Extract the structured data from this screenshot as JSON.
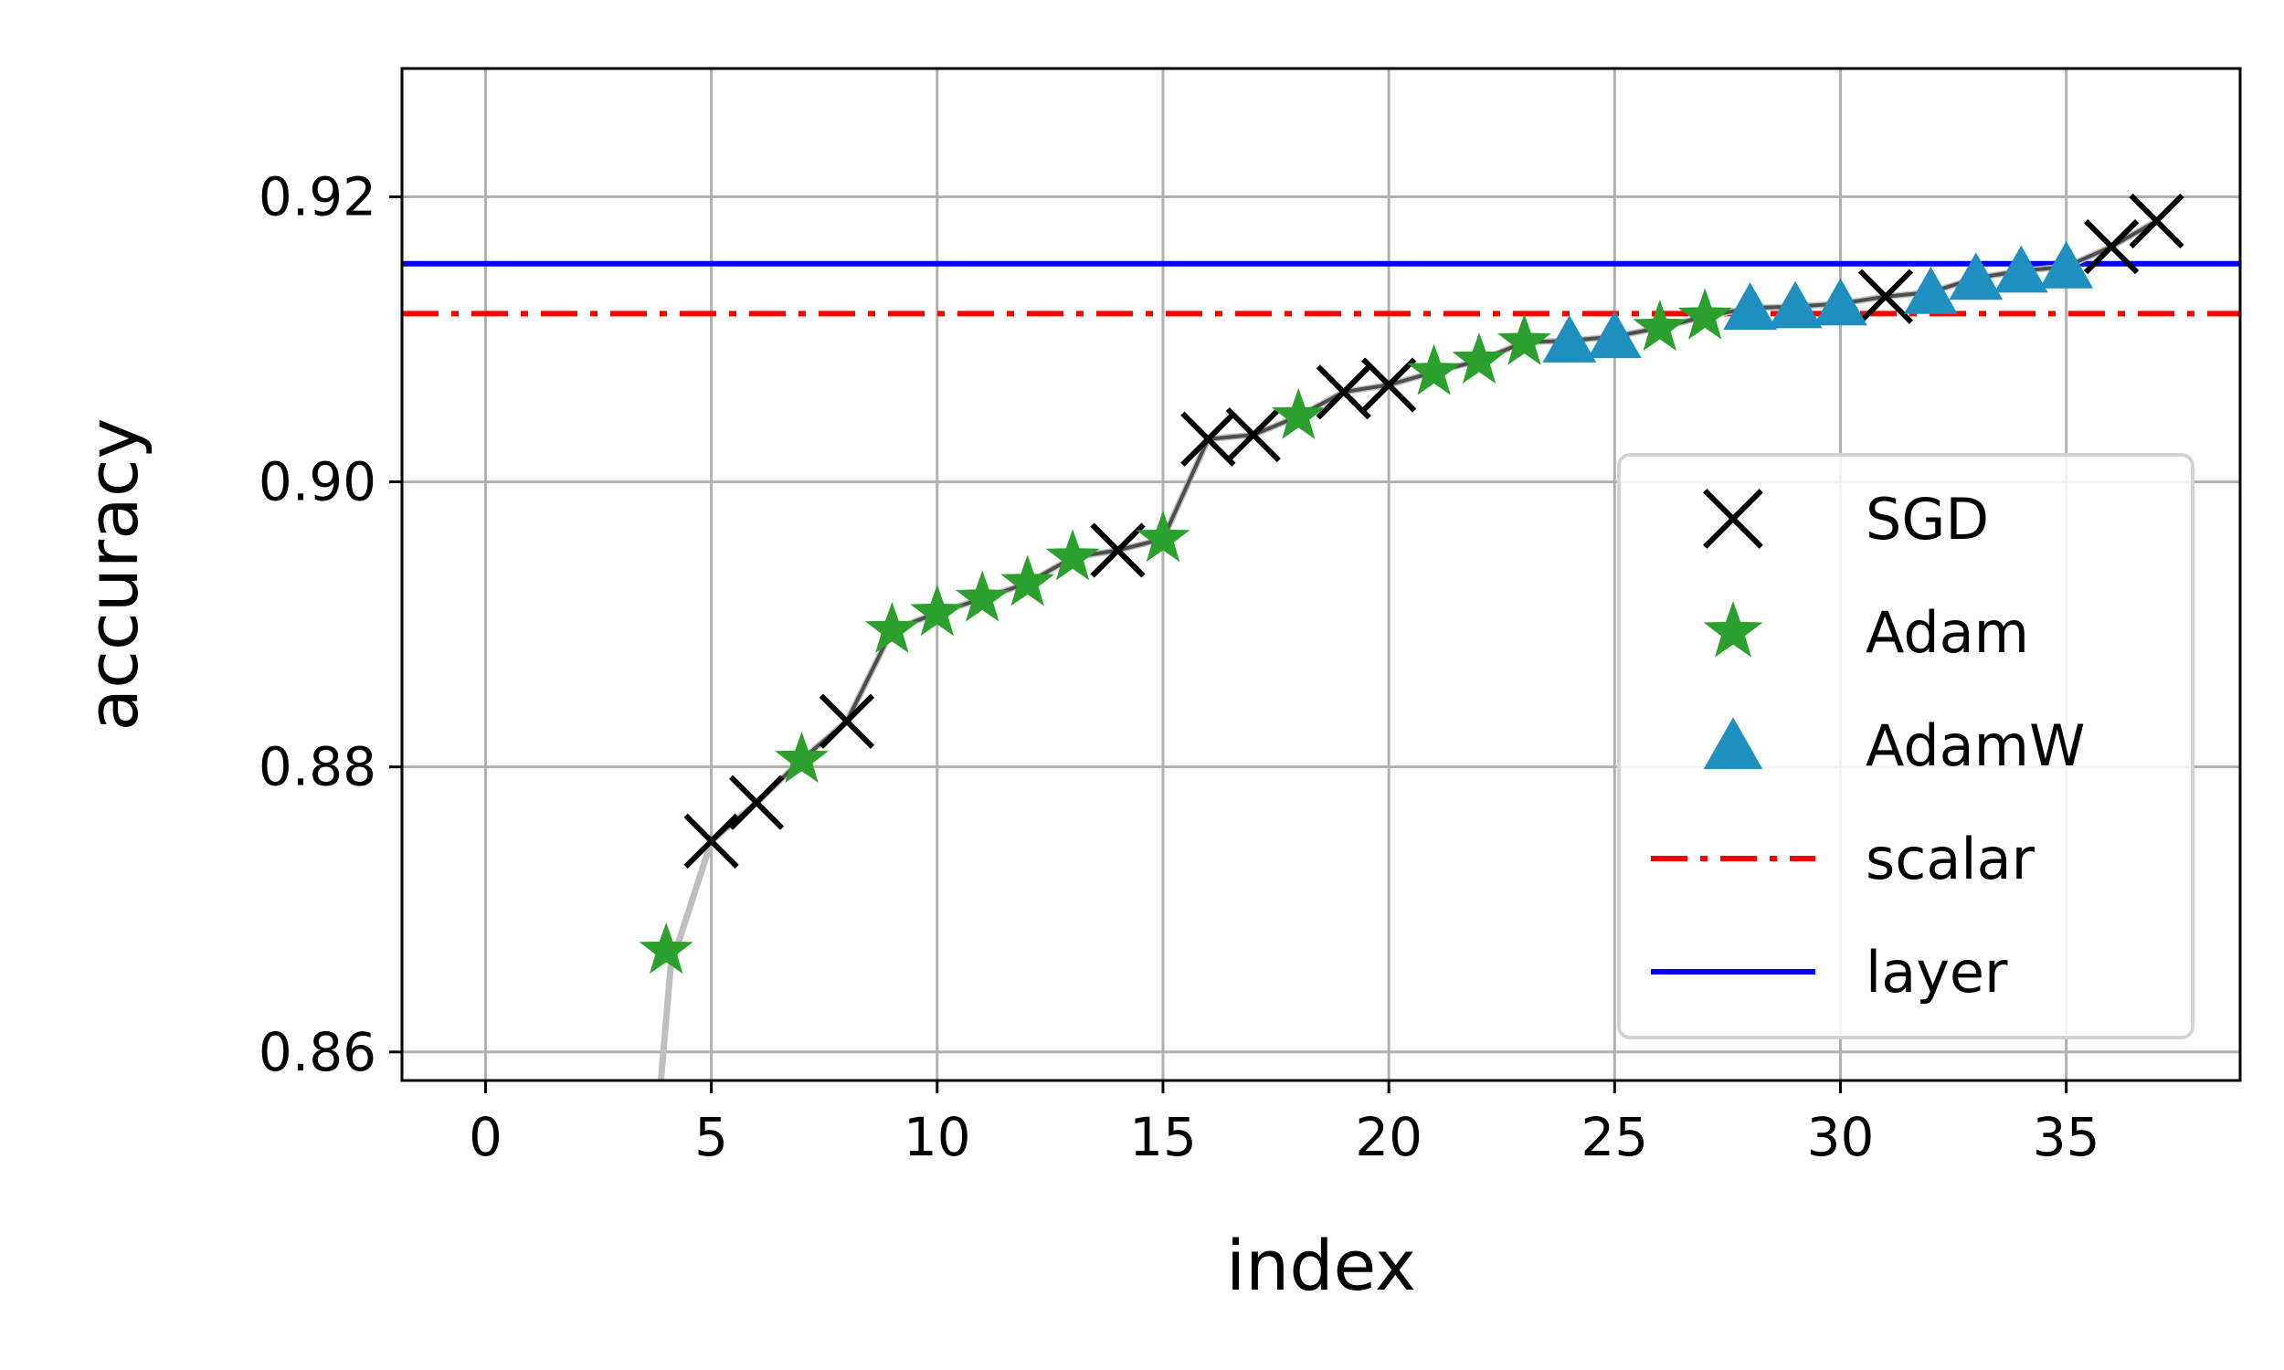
{
  "chart_data": {
    "type": "scatter",
    "title": "",
    "xlabel": "index",
    "ylabel": "accuracy",
    "xlim": [
      -1.85,
      38.85
    ],
    "ylim": [
      0.858,
      0.929
    ],
    "xticks": [
      0,
      5,
      10,
      15,
      20,
      25,
      30,
      35
    ],
    "yticks": [
      0.86,
      0.88,
      0.9,
      0.92
    ],
    "ytick_labels": [
      "0.86",
      "0.88",
      "0.90",
      "0.92"
    ],
    "grid": true,
    "legend_position": "lower-right",
    "curve": {
      "color": "#bfbfbf",
      "dark_color": "#3a3a3a",
      "points": [
        [
          3.75,
          0.853
        ],
        [
          4.1,
          0.866
        ],
        [
          5,
          0.8748
        ],
        [
          6,
          0.8775
        ],
        [
          7,
          0.8805
        ],
        [
          8,
          0.8832
        ],
        [
          9,
          0.8896
        ],
        [
          10,
          0.8908
        ],
        [
          11,
          0.8918
        ],
        [
          12,
          0.8929
        ],
        [
          13,
          0.8947
        ],
        [
          14,
          0.8952
        ],
        [
          15,
          0.896
        ],
        [
          16,
          0.903
        ],
        [
          17,
          0.9033
        ],
        [
          18,
          0.9046
        ],
        [
          19,
          0.9063
        ],
        [
          20,
          0.9068
        ],
        [
          21,
          0.9077
        ],
        [
          22,
          0.9085
        ],
        [
          23,
          0.9098
        ],
        [
          24,
          0.9099
        ],
        [
          25,
          0.9102
        ],
        [
          26,
          0.9108
        ],
        [
          27,
          0.9116
        ],
        [
          28,
          0.9122
        ],
        [
          29,
          0.9123
        ],
        [
          30,
          0.9125
        ],
        [
          31,
          0.913
        ],
        [
          32,
          0.9133
        ],
        [
          33,
          0.9143
        ],
        [
          34,
          0.9148
        ],
        [
          35,
          0.9151
        ],
        [
          36,
          0.9165
        ],
        [
          37,
          0.9183
        ]
      ]
    },
    "series": [
      {
        "name": "SGD",
        "marker": "x",
        "color": "#000000",
        "points": [
          [
            5,
            0.8748
          ],
          [
            6,
            0.8775
          ],
          [
            8,
            0.8832
          ],
          [
            14,
            0.8952
          ],
          [
            16,
            0.903
          ],
          [
            17,
            0.9033
          ],
          [
            19,
            0.9063
          ],
          [
            20,
            0.9068
          ],
          [
            31,
            0.913
          ],
          [
            36,
            0.9165
          ],
          [
            37,
            0.9183
          ]
        ]
      },
      {
        "name": "Adam",
        "marker": "star",
        "color": "#2ca02c",
        "points": [
          [
            4,
            0.8671
          ],
          [
            7,
            0.8805
          ],
          [
            9,
            0.8896
          ],
          [
            10,
            0.8908
          ],
          [
            11,
            0.8918
          ],
          [
            12,
            0.8929
          ],
          [
            13,
            0.8947
          ],
          [
            15,
            0.896
          ],
          [
            18,
            0.9046
          ],
          [
            21,
            0.9077
          ],
          [
            22,
            0.9085
          ],
          [
            23,
            0.9098
          ],
          [
            26,
            0.9108
          ],
          [
            27,
            0.9116
          ]
        ]
      },
      {
        "name": "AdamW",
        "marker": "triangle",
        "color": "#1f8fc0",
        "points": [
          [
            24,
            0.9099
          ],
          [
            25,
            0.9102
          ],
          [
            28,
            0.9122
          ],
          [
            29,
            0.9123
          ],
          [
            30,
            0.9125
          ],
          [
            32,
            0.9133
          ],
          [
            33,
            0.9143
          ],
          [
            34,
            0.9148
          ],
          [
            35,
            0.9151
          ]
        ]
      }
    ],
    "hlines": [
      {
        "name": "scalar",
        "y": 0.9118,
        "color": "#ff0000",
        "style": "dashdot"
      },
      {
        "name": "layer",
        "y": 0.9153,
        "color": "#0000ff",
        "style": "solid"
      }
    ]
  }
}
